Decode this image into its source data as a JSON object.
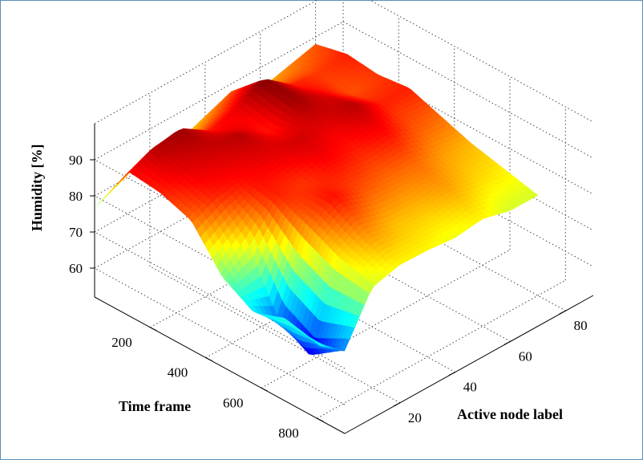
{
  "chart_data": {
    "type": "surface",
    "title": "",
    "xlabel": "Time frame",
    "ylabel": "Active node label",
    "zlabel": "Humidity [%]",
    "xlim": [
      0,
      900
    ],
    "ylim": [
      0,
      90
    ],
    "zlim": [
      52,
      100
    ],
    "x_ticks": [
      "200",
      "400",
      "600",
      "800"
    ],
    "y_ticks": [
      "20",
      "40",
      "60",
      "80"
    ],
    "z_ticks": [
      "60",
      "70",
      "80",
      "90"
    ],
    "grid": true,
    "colormap": "jet",
    "node_profiles": [
      {
        "node": 1,
        "humidity": [
          77,
          91,
          90,
          87,
          76,
          71,
          74,
          72,
          69
        ]
      },
      {
        "node": 10,
        "humidity": [
          80,
          94,
          92,
          90,
          82,
          65,
          60,
          66,
          70
        ]
      },
      {
        "node": 20,
        "humidity": [
          84,
          95,
          93,
          91,
          90,
          86,
          82,
          80,
          78
        ]
      },
      {
        "node": 30,
        "humidity": [
          82,
          90,
          94,
          92,
          89,
          91,
          86,
          82,
          80
        ]
      },
      {
        "node": 40,
        "humidity": [
          85,
          92,
          90,
          93,
          91,
          88,
          84,
          82,
          78
        ]
      },
      {
        "node": 50,
        "humidity": [
          88,
          96,
          95,
          92,
          90,
          87,
          84,
          81,
          79
        ]
      },
      {
        "node": 60,
        "humidity": [
          84,
          90,
          92,
          94,
          91,
          87,
          85,
          82,
          80
        ]
      },
      {
        "node": 70,
        "humidity": [
          86,
          89,
          88,
          90,
          88,
          85,
          83,
          80,
          78
        ]
      },
      {
        "node": 80,
        "humidity": [
          88,
          90,
          89,
          90,
          87,
          84,
          82,
          80,
          78
        ]
      }
    ]
  }
}
